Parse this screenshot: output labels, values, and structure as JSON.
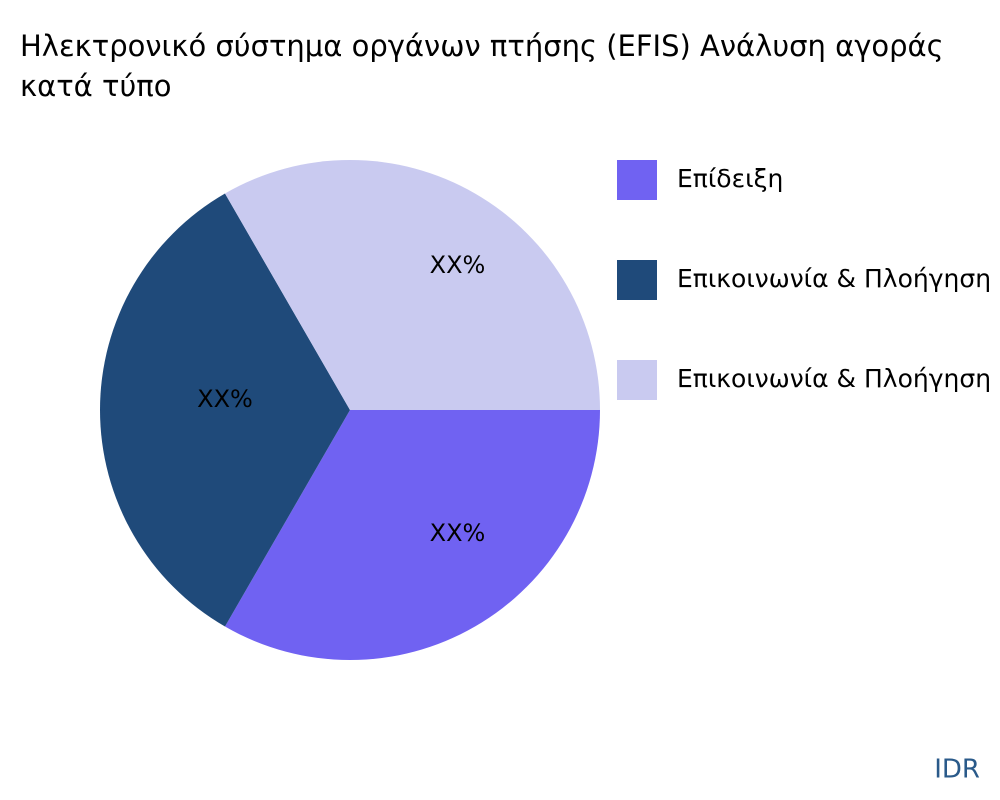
{
  "chart_data": {
    "type": "pie",
    "title": [
      "Ηλεκτρονικό σύστημα οργάνων πτήσης (EFIS) Ανάλυση αγοράς",
      "κατά τύπο"
    ],
    "categories": [
      "Επίδειξη",
      "Επικοινωνία & Πλοήγηση",
      "Επικοινωνία & Πλοήγηση"
    ],
    "values": [
      33.33,
      33.33,
      33.33
    ],
    "value_labels": [
      "XX%",
      "XX%",
      "XX%"
    ],
    "colors": [
      "#7062f2",
      "#1f4a7a",
      "#c9caf0"
    ],
    "legend": "right"
  },
  "footer": "IDR"
}
